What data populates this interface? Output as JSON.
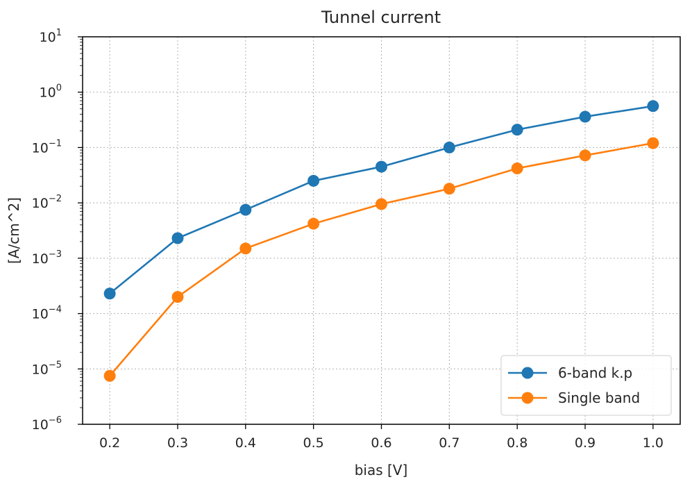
{
  "chart_data": {
    "type": "line",
    "title": "Tunnel current",
    "xlabel": "bias [V]",
    "ylabel": "[A/cm^2]",
    "yscale": "log",
    "ylim": [
      1e-06,
      10
    ],
    "xlim": [
      0.16,
      1.04
    ],
    "grid": true,
    "legend_position": "lower-right",
    "x": [
      0.2,
      0.3,
      0.4,
      0.5,
      0.6,
      0.7,
      0.8,
      0.9,
      1.0
    ],
    "x_tick_labels": [
      "0.2",
      "0.3",
      "0.4",
      "0.5",
      "0.6",
      "0.7",
      "0.8",
      "0.9",
      "1.0"
    ],
    "y_ticks": [
      {
        "base": "10",
        "exp": "1",
        "value": 10
      },
      {
        "base": "10",
        "exp": "0",
        "value": 1
      },
      {
        "base": "10",
        "exp": "−1",
        "value": 0.1
      },
      {
        "base": "10",
        "exp": "−2",
        "value": 0.01
      },
      {
        "base": "10",
        "exp": "−3",
        "value": 0.001
      },
      {
        "base": "10",
        "exp": "−4",
        "value": 0.0001
      },
      {
        "base": "10",
        "exp": "−5",
        "value": 1e-05
      },
      {
        "base": "10",
        "exp": "−6",
        "value": 1e-06
      }
    ],
    "series": [
      {
        "name": "6-band k.p",
        "color": "#1f77b4",
        "values": [
          0.00023,
          0.0023,
          0.0075,
          0.025,
          0.045,
          0.1,
          0.21,
          0.36,
          0.56
        ]
      },
      {
        "name": "Single band",
        "color": "#ff7f0e",
        "values": [
          7.5e-06,
          0.0002,
          0.0015,
          0.0042,
          0.0095,
          0.018,
          0.042,
          0.072,
          0.12
        ]
      }
    ]
  }
}
